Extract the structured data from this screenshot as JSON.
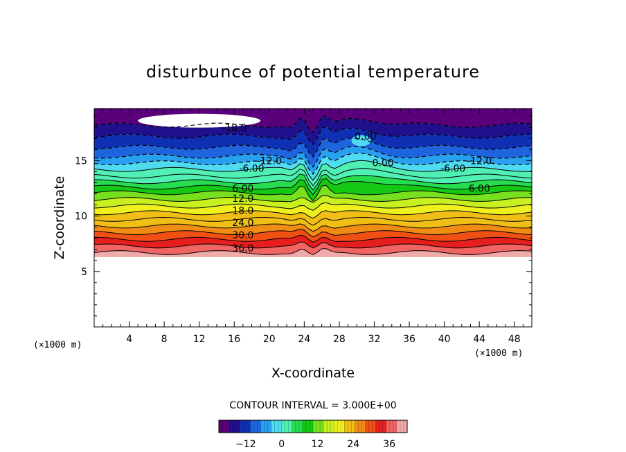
{
  "chart_data": {
    "type": "heatmap",
    "title": "disturbunce of potential temperature",
    "xlabel": "X-coordinate",
    "ylabel": "Z-coordinate",
    "x_unit_left": "(×1000 m)",
    "x_unit_right": "(×1000 m)",
    "xlim": [
      0,
      50
    ],
    "ylim": [
      0,
      19.7
    ],
    "x_ticks": [
      4,
      8,
      12,
      16,
      20,
      24,
      28,
      32,
      36,
      40,
      44,
      48
    ],
    "x_tick_labels": [
      "4",
      "8",
      "12",
      "16",
      "20",
      "24",
      "28",
      "32",
      "36",
      "40",
      "44",
      "48"
    ],
    "y_ticks": [
      5,
      10,
      15
    ],
    "y_tick_labels": [
      "5",
      "10",
      "15"
    ],
    "contour_interval_text": "CONTOUR INTERVAL = 3.000E+00",
    "contour_interval": 3.0,
    "colorbar": {
      "range": [
        -21,
        42
      ],
      "tick_values": [
        -12,
        0,
        12,
        24,
        36
      ],
      "tick_labels": [
        "−12",
        "0",
        "12",
        "24",
        "36"
      ],
      "colors": [
        "#5a007a",
        "#20108c",
        "#1030b4",
        "#1e64dc",
        "#28a0f0",
        "#50dcf0",
        "#50f0b4",
        "#28dc50",
        "#14c814",
        "#78e01e",
        "#c8f01e",
        "#f0f01e",
        "#f0be14",
        "#f08c14",
        "#f05014",
        "#e61e1e",
        "#f06464",
        "#f0aaaa"
      ]
    },
    "contour_labels": [
      {
        "x": 16,
        "z": 18.0,
        "text": "-18.0"
      },
      {
        "x": 31,
        "z": 17.2,
        "text": "0.00"
      },
      {
        "x": 20,
        "z": 15.0,
        "text": "-12.0"
      },
      {
        "x": 44,
        "z": 15.0,
        "text": "-12.0"
      },
      {
        "x": 33,
        "z": 14.8,
        "text": "0.00"
      },
      {
        "x": 18,
        "z": 14.3,
        "text": "-6.00"
      },
      {
        "x": 41,
        "z": 14.3,
        "text": "-6.00"
      },
      {
        "x": 17,
        "z": 12.5,
        "text": "6.00"
      },
      {
        "x": 44,
        "z": 12.5,
        "text": "6.00"
      },
      {
        "x": 17,
        "z": 11.6,
        "text": "12.0"
      },
      {
        "x": 17,
        "z": 10.5,
        "text": "18.0"
      },
      {
        "x": 17,
        "z": 9.4,
        "text": "24.0"
      },
      {
        "x": 17,
        "z": 8.3,
        "text": "30.0"
      },
      {
        "x": 17,
        "z": 7.1,
        "text": "36.0"
      }
    ],
    "field_bands": [
      {
        "z": 6.7,
        "value": 40
      },
      {
        "z": 7.3,
        "value": 36
      },
      {
        "z": 7.9,
        "value": 33
      },
      {
        "z": 8.5,
        "value": 30
      },
      {
        "z": 9.1,
        "value": 27
      },
      {
        "z": 9.7,
        "value": 24
      },
      {
        "z": 10.3,
        "value": 21
      },
      {
        "z": 10.9,
        "value": 18
      },
      {
        "z": 11.5,
        "value": 15
      },
      {
        "z": 12.1,
        "value": 12
      },
      {
        "z": 12.6,
        "value": 9
      },
      {
        "z": 13.1,
        "value": 6
      },
      {
        "z": 13.6,
        "value": 3
      },
      {
        "z": 14.2,
        "value": 0
      },
      {
        "z": 14.8,
        "value": -3
      },
      {
        "z": 15.4,
        "value": -6
      },
      {
        "z": 16.2,
        "value": -9
      },
      {
        "z": 17.2,
        "value": -12
      },
      {
        "z": 18.2,
        "value": -15
      },
      {
        "z": 19.7,
        "value": -18
      }
    ]
  }
}
